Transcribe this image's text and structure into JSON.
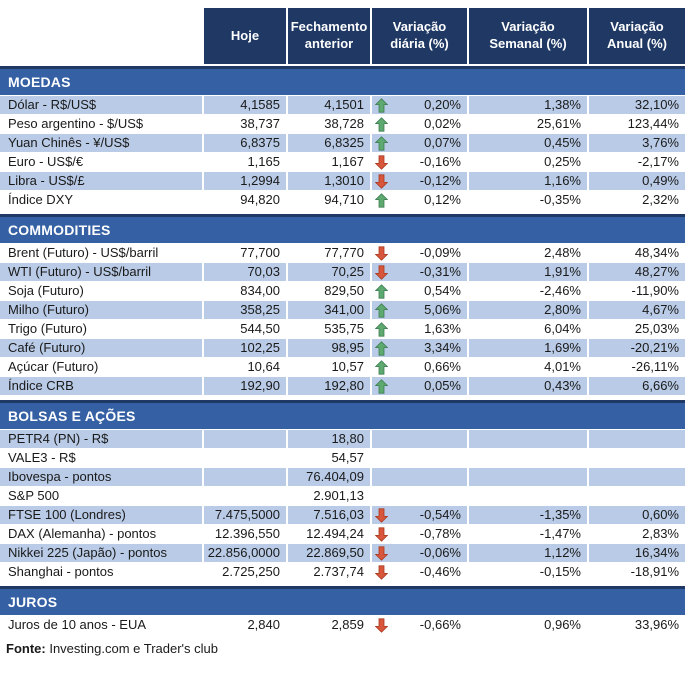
{
  "header": {
    "columns": [
      "Hoje",
      "Fechamento anterior",
      "Variação diária (%)",
      "Variação Semanal (%)",
      "Variação Anual (%)"
    ]
  },
  "sections": [
    {
      "title": "MOEDAS",
      "first_row_striped": true,
      "rows": [
        {
          "label": "Dólar - R$/US$",
          "hoje": "4,1585",
          "fechamento": "4,1501",
          "arrow": "up",
          "diaria": "0,20%",
          "semanal": "1,38%",
          "anual": "32,10%"
        },
        {
          "label": "Peso argentino - $/US$",
          "hoje": "38,737",
          "fechamento": "38,728",
          "arrow": "up",
          "diaria": "0,02%",
          "semanal": "25,61%",
          "anual": "123,44%"
        },
        {
          "label": "Yuan Chinês - ¥/US$",
          "hoje": "6,8375",
          "fechamento": "6,8325",
          "arrow": "up",
          "diaria": "0,07%",
          "semanal": "0,45%",
          "anual": "3,76%"
        },
        {
          "label": "Euro - US$/€",
          "hoje": "1,165",
          "fechamento": "1,167",
          "arrow": "down",
          "diaria": "-0,16%",
          "semanal": "0,25%",
          "anual": "-2,17%"
        },
        {
          "label": "Libra - US$/£",
          "hoje": "1,2994",
          "fechamento": "1,3010",
          "arrow": "down",
          "diaria": "-0,12%",
          "semanal": "1,16%",
          "anual": "0,49%"
        },
        {
          "label": "Índice DXY",
          "hoje": "94,820",
          "fechamento": "94,710",
          "arrow": "up",
          "diaria": "0,12%",
          "semanal": "-0,35%",
          "anual": "2,32%"
        }
      ]
    },
    {
      "title": "COMMODITIES",
      "first_row_striped": false,
      "rows": [
        {
          "label": "Brent (Futuro) - US$/barril",
          "hoje": "77,700",
          "fechamento": "77,770",
          "arrow": "down",
          "diaria": "-0,09%",
          "semanal": "2,48%",
          "anual": "48,34%"
        },
        {
          "label": "WTI (Futuro) - US$/barril",
          "hoje": "70,03",
          "fechamento": "70,25",
          "arrow": "down",
          "diaria": "-0,31%",
          "semanal": "1,91%",
          "anual": "48,27%"
        },
        {
          "label": "Soja (Futuro)",
          "hoje": "834,00",
          "fechamento": "829,50",
          "arrow": "up",
          "diaria": "0,54%",
          "semanal": "-2,46%",
          "anual": "-11,90%"
        },
        {
          "label": "Milho (Futuro)",
          "hoje": "358,25",
          "fechamento": "341,00",
          "arrow": "up",
          "diaria": "5,06%",
          "semanal": "2,80%",
          "anual": "4,67%"
        },
        {
          "label": "Trigo (Futuro)",
          "hoje": "544,50",
          "fechamento": "535,75",
          "arrow": "up",
          "diaria": "1,63%",
          "semanal": "6,04%",
          "anual": "25,03%"
        },
        {
          "label": "Café (Futuro)",
          "hoje": "102,25",
          "fechamento": "98,95",
          "arrow": "up",
          "diaria": "3,34%",
          "semanal": "1,69%",
          "anual": "-20,21%"
        },
        {
          "label": "Açúcar (Futuro)",
          "hoje": "10,64",
          "fechamento": "10,57",
          "arrow": "up",
          "diaria": "0,66%",
          "semanal": "4,01%",
          "anual": "-26,11%"
        },
        {
          "label": "Índice CRB",
          "hoje": "192,90",
          "fechamento": "192,80",
          "arrow": "up",
          "diaria": "0,05%",
          "semanal": "0,43%",
          "anual": "6,66%"
        }
      ]
    },
    {
      "title": "BOLSAS E AÇÕES",
      "first_row_striped": true,
      "rows": [
        {
          "label": "PETR4 (PN) - R$",
          "hoje": "",
          "fechamento": "18,80",
          "arrow": "",
          "diaria": "",
          "semanal": "",
          "anual": ""
        },
        {
          "label": "VALE3 - R$",
          "hoje": "",
          "fechamento": "54,57",
          "arrow": "",
          "diaria": "",
          "semanal": "",
          "anual": ""
        },
        {
          "label": "Ibovespa - pontos",
          "hoje": "",
          "fechamento": "76.404,09",
          "arrow": "",
          "diaria": "",
          "semanal": "",
          "anual": ""
        },
        {
          "label": "S&P 500",
          "hoje": "",
          "fechamento": "2.901,13",
          "arrow": "",
          "diaria": "",
          "semanal": "",
          "anual": ""
        },
        {
          "label": "FTSE 100 (Londres)",
          "hoje": "7.475,5000",
          "fechamento": "7.516,03",
          "arrow": "down",
          "diaria": "-0,54%",
          "semanal": "-1,35%",
          "anual": "0,60%"
        },
        {
          "label": "DAX (Alemanha) - pontos",
          "hoje": "12.396,550",
          "fechamento": "12.494,24",
          "arrow": "down",
          "diaria": "-0,78%",
          "semanal": "-1,47%",
          "anual": "2,83%"
        },
        {
          "label": "Nikkei 225 (Japão) - pontos",
          "hoje": "22.856,0000",
          "fechamento": "22.869,50",
          "arrow": "down",
          "diaria": "-0,06%",
          "semanal": "1,12%",
          "anual": "16,34%"
        },
        {
          "label": "Shanghai - pontos",
          "hoje": "2.725,250",
          "fechamento": "2.737,74",
          "arrow": "down",
          "diaria": "-0,46%",
          "semanal": "-0,15%",
          "anual": "-18,91%"
        }
      ]
    },
    {
      "title": "JUROS",
      "first_row_striped": false,
      "rows": [
        {
          "label": "Juros de 10 anos - EUA",
          "hoje": "2,840",
          "fechamento": "2,859",
          "arrow": "down",
          "diaria": "-0,66%",
          "semanal": "0,96%",
          "anual": "33,96%"
        }
      ]
    }
  ],
  "footer": {
    "label": "Fonte:",
    "text": " Investing.com e Trader's club"
  },
  "colors": {
    "header_bg": "#1F3864",
    "header_text": "#FFFFFF",
    "section_bg": "#3561A4",
    "divider": "#1F3864",
    "stripe_bg": "#B9CBE6",
    "text": "#1A1A1A",
    "arrow_up": "#5EA970",
    "arrow_up_border": "#3E7D53",
    "arrow_down": "#D8573C",
    "arrow_down_border": "#A93A20"
  },
  "icons": {
    "up": "up-arrow-icon",
    "down": "down-arrow-icon"
  }
}
